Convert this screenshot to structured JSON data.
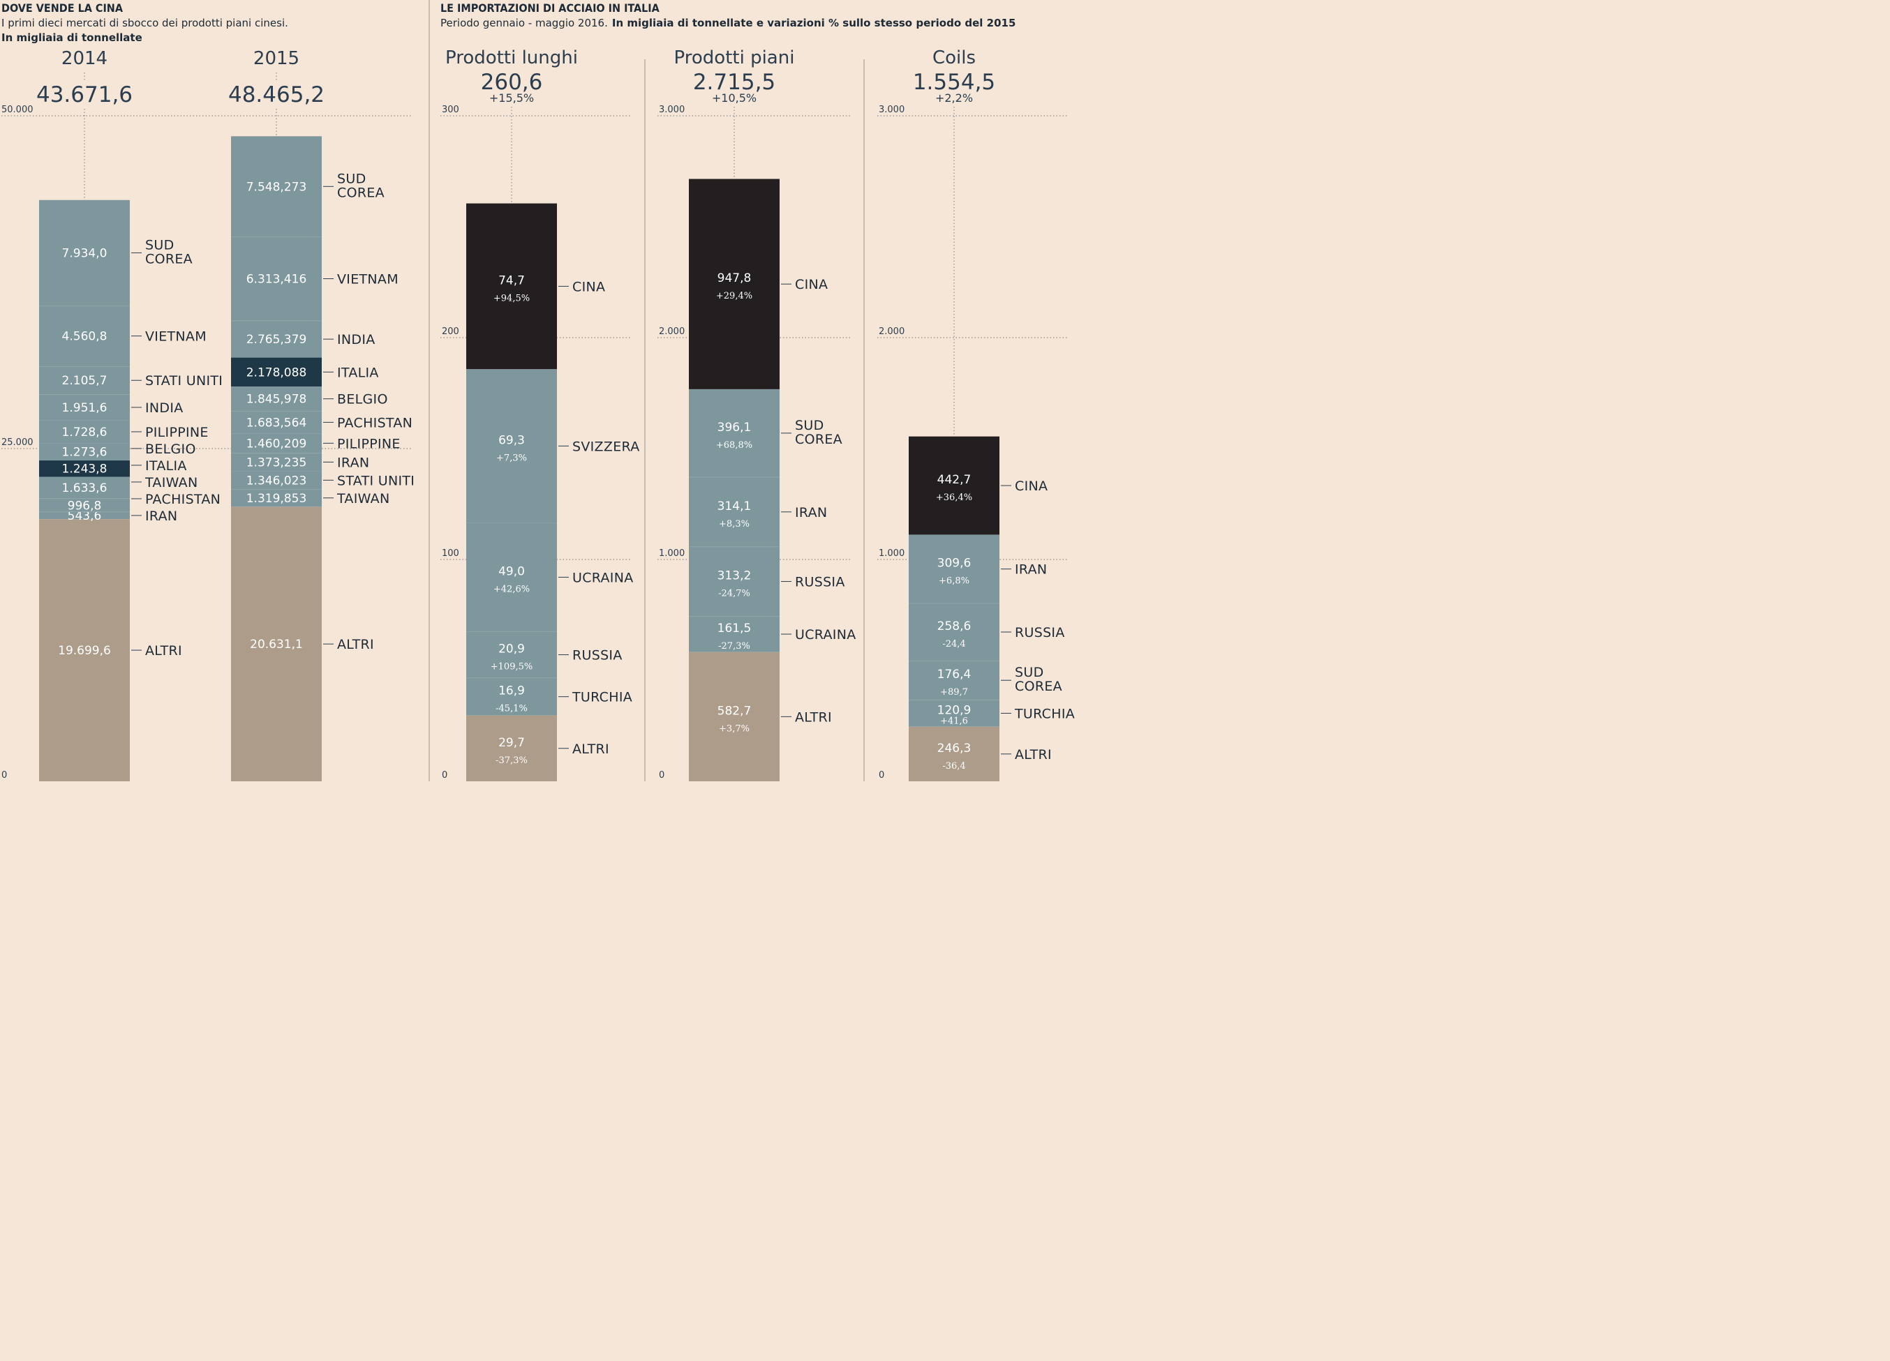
{
  "left_header": {
    "title": "DOVE VENDE LA CINA",
    "subtitle": "I primi dieci mercati di sbocco dei prodotti piani cinesi.",
    "unit": "In migliaia di tonnellate"
  },
  "right_header": {
    "title": "LE IMPORTAZIONI DI ACCIAIO IN ITALIA",
    "subtitle": "Periodo gennaio - maggio 2016.",
    "unit": "In migliaia di tonnellate e variazioni % sullo stesso periodo del 2015"
  },
  "colors": {
    "market": "#7e979d",
    "italia": "#1e3847",
    "altri": "#ae9c8a",
    "cina": "#231f20",
    "background": "#f5e6d7"
  },
  "chart_data": [
    {
      "type": "bar",
      "stacked": true,
      "ylim": [
        0,
        50000
      ],
      "yticks": [
        0,
        25000,
        50000
      ],
      "ytick_labels": [
        "0",
        "25.000",
        "50.000"
      ],
      "grid": true,
      "bars": [
        {
          "label": "2014",
          "total_label": "43.671,6",
          "segments": [
            {
              "name": "ALTRI",
              "value": 19699.6,
              "value_label": "19.699,6",
              "kind": "altri"
            },
            {
              "name": "IRAN",
              "value": 543.6,
              "value_label": "543,6",
              "kind": "market"
            },
            {
              "name": "PACHISTAN",
              "value": 996.8,
              "value_label": "996,8",
              "kind": "market"
            },
            {
              "name": "TAIWAN",
              "value": 1633.6,
              "value_label": "1.633,6",
              "kind": "market"
            },
            {
              "name": "ITALIA",
              "value": 1243.8,
              "value_label": "1.243,8",
              "kind": "italia"
            },
            {
              "name": "BELGIO",
              "value": 1273.6,
              "value_label": "1.273,6",
              "kind": "market"
            },
            {
              "name": "PILIPPINE",
              "value": 1728.6,
              "value_label": "1.728,6",
              "kind": "market"
            },
            {
              "name": "INDIA",
              "value": 1951.6,
              "value_label": "1.951,6",
              "kind": "market"
            },
            {
              "name": "STATI UNITI",
              "value": 2105.7,
              "value_label": "2.105,7",
              "kind": "market"
            },
            {
              "name": "VIETNAM",
              "value": 4560.8,
              "value_label": "4.560,8",
              "kind": "market"
            },
            {
              "name": "SUD COREA",
              "value": 7934.0,
              "value_label": "7.934,0",
              "kind": "market"
            }
          ]
        },
        {
          "label": "2015",
          "total_label": "48.465,2",
          "segments": [
            {
              "name": "ALTRI",
              "value": 20631.1,
              "value_label": "20.631,1",
              "kind": "altri"
            },
            {
              "name": "TAIWAN",
              "value": 1319.853,
              "value_label": "1.319,853",
              "kind": "market"
            },
            {
              "name": "STATI UNITI",
              "value": 1346.023,
              "value_label": "1.346,023",
              "kind": "market"
            },
            {
              "name": "IRAN",
              "value": 1373.235,
              "value_label": "1.373,235",
              "kind": "market"
            },
            {
              "name": "PILIPPINE",
              "value": 1460.209,
              "value_label": "1.460,209",
              "kind": "market"
            },
            {
              "name": "PACHISTAN",
              "value": 1683.564,
              "value_label": "1.683,564",
              "kind": "market"
            },
            {
              "name": "BELGIO",
              "value": 1845.978,
              "value_label": "1.845,978",
              "kind": "market"
            },
            {
              "name": "ITALIA",
              "value": 2178.088,
              "value_label": "2.178,088",
              "kind": "italia"
            },
            {
              "name": "INDIA",
              "value": 2765.379,
              "value_label": "2.765,379",
              "kind": "market"
            },
            {
              "name": "VIETNAM",
              "value": 6313.416,
              "value_label": "6.313,416",
              "kind": "market"
            },
            {
              "name": "SUD COREA",
              "value": 7548.273,
              "value_label": "7.548,273",
              "kind": "market"
            }
          ]
        }
      ]
    },
    {
      "type": "bar",
      "stacked": true,
      "title": "Prodotti lunghi",
      "total_label": "260,6",
      "change_label": "+15,5%",
      "ylim": [
        0,
        300
      ],
      "yticks": [
        0,
        100,
        200,
        300
      ],
      "ytick_labels": [
        "0",
        "100",
        "200",
        "300"
      ],
      "grid": true,
      "segments": [
        {
          "name": "ALTRI",
          "value": 29.7,
          "value_label": "29,7",
          "pct_label": "-37,3%",
          "kind": "altri"
        },
        {
          "name": "TURCHIA",
          "value": 16.9,
          "value_label": "16,9",
          "pct_label": "-45,1%",
          "kind": "market"
        },
        {
          "name": "RUSSIA",
          "value": 20.9,
          "value_label": "20,9",
          "pct_label": "+109,5%",
          "kind": "market"
        },
        {
          "name": "UCRAINA",
          "value": 49.0,
          "value_label": "49,0",
          "pct_label": "+42,6%",
          "kind": "market"
        },
        {
          "name": "SVIZZERA",
          "value": 69.3,
          "value_label": "69,3",
          "pct_label": "+7,3%",
          "kind": "market"
        },
        {
          "name": "CINA",
          "value": 74.7,
          "value_label": "74,7",
          "pct_label": "+94,5%",
          "kind": "cina"
        }
      ]
    },
    {
      "type": "bar",
      "stacked": true,
      "title": "Prodotti piani",
      "total_label": "2.715,5",
      "change_label": "+10,5%",
      "ylim": [
        0,
        3000
      ],
      "yticks": [
        0,
        1000,
        2000,
        3000
      ],
      "ytick_labels": [
        "0",
        "1.000",
        "2.000",
        "3.000"
      ],
      "grid": true,
      "segments": [
        {
          "name": "ALTRI",
          "value": 582.7,
          "value_label": "582,7",
          "pct_label": "+3,7%",
          "kind": "altri"
        },
        {
          "name": "UCRAINA",
          "value": 161.5,
          "value_label": "161,5",
          "pct_label": "-27,3%",
          "kind": "market"
        },
        {
          "name": "RUSSIA",
          "value": 313.2,
          "value_label": "313,2",
          "pct_label": "-24,7%",
          "kind": "market"
        },
        {
          "name": "IRAN",
          "value": 314.1,
          "value_label": "314,1",
          "pct_label": "+8,3%",
          "kind": "market"
        },
        {
          "name": "SUD COREA",
          "value": 396.1,
          "value_label": "396,1",
          "pct_label": "+68,8%",
          "kind": "market"
        },
        {
          "name": "CINA",
          "value": 947.8,
          "value_label": "947,8",
          "pct_label": "+29,4%",
          "kind": "cina"
        }
      ]
    },
    {
      "type": "bar",
      "stacked": true,
      "title": "Coils",
      "total_label": "1.554,5",
      "change_label": "+2,2%",
      "ylim": [
        0,
        3000
      ],
      "yticks": [
        0,
        1000,
        2000,
        3000
      ],
      "ytick_labels": [
        "0",
        "1.000",
        "2.000",
        "3.000"
      ],
      "grid": true,
      "segments": [
        {
          "name": "ALTRI",
          "value": 246.3,
          "value_label": "246,3",
          "pct_label": "-36,4",
          "kind": "altri"
        },
        {
          "name": "TURCHIA",
          "value": 120.9,
          "value_label": "120,9",
          "pct_label": "+41,6",
          "kind": "market"
        },
        {
          "name": "SUD COREA",
          "value": 176.4,
          "value_label": "176,4",
          "pct_label": "+89,7",
          "kind": "market"
        },
        {
          "name": "RUSSIA",
          "value": 258.6,
          "value_label": "258,6",
          "pct_label": "-24,4",
          "kind": "market"
        },
        {
          "name": "IRAN",
          "value": 309.6,
          "value_label": "309,6",
          "pct_label": "+6,8%",
          "kind": "market"
        },
        {
          "name": "CINA",
          "value": 442.7,
          "value_label": "442,7",
          "pct_label": "+36,4%",
          "kind": "cina"
        }
      ]
    }
  ]
}
